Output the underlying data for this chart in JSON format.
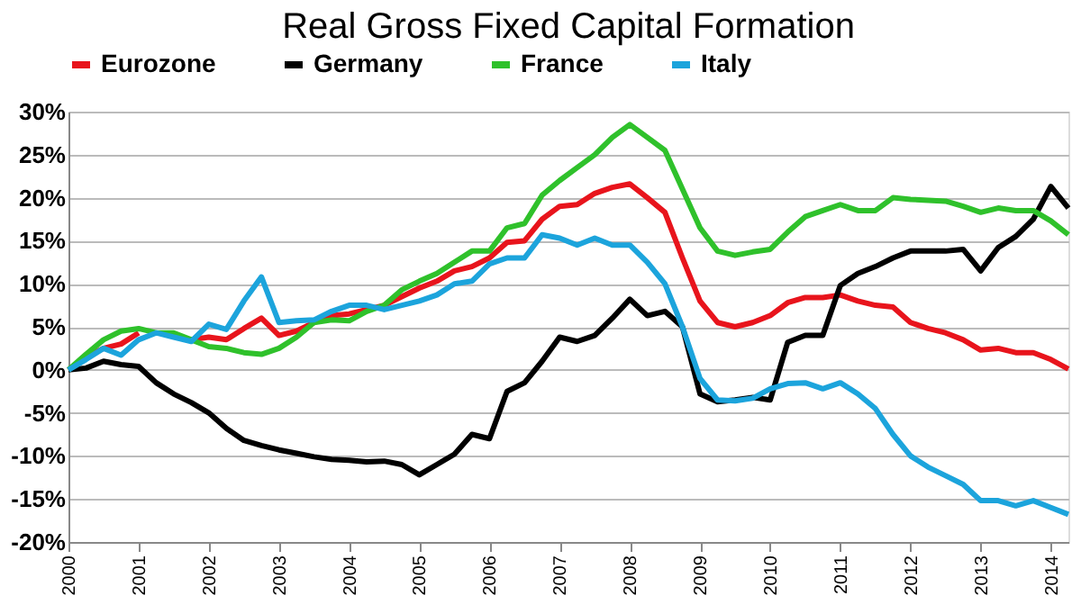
{
  "chart_data": {
    "type": "line",
    "title": "Real Gross Fixed Capital Formation",
    "x": [
      2000,
      2000.25,
      2000.5,
      2000.75,
      2001,
      2001.25,
      2001.5,
      2001.75,
      2002,
      2002.25,
      2002.5,
      2002.75,
      2003,
      2003.25,
      2003.5,
      2003.75,
      2004,
      2004.25,
      2004.5,
      2004.75,
      2005,
      2005.25,
      2005.5,
      2005.75,
      2006,
      2006.25,
      2006.5,
      2006.75,
      2007,
      2007.25,
      2007.5,
      2007.75,
      2008,
      2008.25,
      2008.5,
      2008.75,
      2009,
      2009.25,
      2009.5,
      2009.75,
      2010,
      2010.25,
      2010.5,
      2010.75,
      2011,
      2011.25,
      2011.5,
      2011.75,
      2012,
      2012.25,
      2012.5,
      2012.75,
      2013,
      2013.25,
      2013.5,
      2013.75,
      2014,
      2014.25
    ],
    "series": [
      {
        "name": "Eurozone",
        "color": "#e8141c",
        "values": [
          0,
          1.5,
          2.5,
          3.0,
          4.3,
          null,
          null,
          3.5,
          3.8,
          3.5,
          4.8,
          6.0,
          4.0,
          4.5,
          5.5,
          6.3,
          6.5,
          7.0,
          7.5,
          8.5,
          9.5,
          10.3,
          11.5,
          12.0,
          13.0,
          14.8,
          15.0,
          17.5,
          19.0,
          19.2,
          20.5,
          21.2,
          21.6,
          20.0,
          18.3,
          13.0,
          8.0,
          5.5,
          5.0,
          5.5,
          6.3,
          7.8,
          8.4,
          8.4,
          8.7,
          8.0,
          7.5,
          7.3,
          5.5,
          4.8,
          4.3,
          3.5,
          2.3,
          2.5,
          2.0,
          2.0,
          1.2,
          0.1
        ]
      },
      {
        "name": "Germany",
        "color": "#000000",
        "values": [
          0,
          0.2,
          1.0,
          0.6,
          0.4,
          -1.5,
          -2.8,
          -3.8,
          -5.0,
          -6.8,
          -8.2,
          -8.8,
          -9.3,
          -9.7,
          -10.1,
          -10.4,
          -10.5,
          -10.7,
          -10.6,
          -11.0,
          -12.2,
          -11.0,
          -9.8,
          -7.5,
          -8.0,
          -2.5,
          -1.5,
          1.0,
          3.8,
          3.3,
          4.0,
          6.0,
          8.2,
          6.3,
          6.8,
          5.0,
          -2.8,
          -3.7,
          -3.5,
          -3.2,
          -3.5,
          3.2,
          4.0,
          4.0,
          9.8,
          11.2,
          12.0,
          13.0,
          13.8,
          13.8,
          13.8,
          14.0,
          11.5,
          14.2,
          15.5,
          17.5,
          21.3,
          18.8
        ]
      },
      {
        "name": "France",
        "color": "#2fc12b",
        "values": [
          0,
          1.8,
          3.5,
          4.5,
          4.8,
          4.3,
          4.3,
          3.5,
          2.7,
          2.5,
          2.0,
          1.8,
          2.5,
          3.8,
          5.5,
          5.8,
          5.7,
          6.8,
          7.5,
          9.3,
          10.3,
          11.2,
          12.5,
          13.8,
          13.8,
          16.5,
          17.0,
          20.3,
          22.0,
          23.5,
          25.0,
          27.0,
          28.5,
          27.0,
          25.5,
          21.0,
          16.5,
          13.8,
          13.3,
          13.7,
          14.0,
          16.0,
          17.8,
          18.5,
          19.2,
          18.5,
          18.5,
          20.0,
          19.8,
          19.7,
          19.6,
          19.0,
          18.3,
          18.8,
          18.5,
          18.5,
          17.3,
          15.7
        ]
      },
      {
        "name": "Italy",
        "color": "#1ca4dc",
        "values": [
          0,
          1.2,
          2.5,
          1.7,
          3.5,
          4.3,
          3.8,
          3.3,
          5.3,
          4.7,
          8.0,
          10.8,
          5.5,
          5.7,
          5.8,
          6.8,
          7.5,
          7.5,
          7.0,
          7.5,
          8.0,
          8.7,
          10.0,
          10.3,
          12.3,
          13.0,
          13.0,
          15.7,
          15.3,
          14.5,
          15.3,
          14.5,
          14.5,
          12.5,
          10.0,
          5.0,
          -1.0,
          -3.5,
          -3.6,
          -3.3,
          -2.2,
          -1.6,
          -1.5,
          -2.2,
          -1.5,
          -2.8,
          -4.5,
          -7.5,
          -10.0,
          -11.3,
          -12.3,
          -13.3,
          -15.2,
          -15.2,
          -15.8,
          -15.2,
          -16.0,
          -16.8
        ]
      }
    ],
    "xlim": [
      2000,
      2014.25
    ],
    "xticks": [
      2000,
      2001,
      2002,
      2003,
      2004,
      2005,
      2006,
      2007,
      2008,
      2009,
      2010,
      2011,
      2012,
      2013,
      2014
    ],
    "ylim": [
      -20,
      30
    ],
    "yticks": [
      {
        "value": -20,
        "label": "-20%"
      },
      {
        "value": -15,
        "label": "-15%"
      },
      {
        "value": -10,
        "label": "-10%"
      },
      {
        "value": -5,
        "label": "-5%"
      },
      {
        "value": 0,
        "label": "0%"
      },
      {
        "value": 5,
        "label": "5%"
      },
      {
        "value": 10,
        "label": "10%"
      },
      {
        "value": 15,
        "label": "15%"
      },
      {
        "value": 20,
        "label": "20%"
      },
      {
        "value": 25,
        "label": "25%"
      },
      {
        "value": 30,
        "label": "30%"
      }
    ],
    "grid": "y",
    "legend": "top",
    "marker": "none",
    "line_style": "solid"
  }
}
